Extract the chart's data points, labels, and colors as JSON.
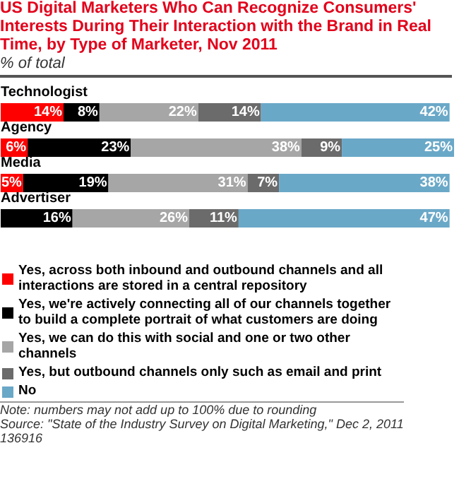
{
  "chart_data": {
    "type": "bar",
    "orientation": "horizontal",
    "stacked": true,
    "title": "US Digital Marketers Who Can Recognize Consumers' Interests During Their Interaction with the Brand in Real Time, by Type of Marketer, Nov 2011",
    "subtitle": "% of total",
    "categories": [
      "Technologist",
      "Agency",
      "Media",
      "Advertiser"
    ],
    "series": [
      {
        "name": "Yes, across both inbound and outbound channels and all interactions are stored in a central repository",
        "color": "#ff0000",
        "values": [
          14,
          6,
          5,
          0
        ],
        "value_labels": [
          "14%",
          "6%",
          "5%",
          null
        ]
      },
      {
        "name": "Yes, we're actively connecting all of our channels together to build a complete portrait of what customers are doing",
        "color": "#000000",
        "values": [
          8,
          23,
          19,
          16
        ],
        "value_labels": [
          "8%",
          "23%",
          "19%",
          "16%"
        ]
      },
      {
        "name": "Yes, we can do this with social and one or two other channels",
        "color": "#a6a6a6",
        "values": [
          22,
          38,
          31,
          26
        ],
        "value_labels": [
          "22%",
          "38%",
          "31%",
          "26%"
        ]
      },
      {
        "name": "Yes, but outbound channels only such as email and print",
        "color": "#6b6b6b",
        "values": [
          14,
          9,
          7,
          11
        ],
        "value_labels": [
          "14%",
          "9%",
          "7%",
          "11%"
        ]
      },
      {
        "name": "No",
        "color": "#6aa8c8",
        "values": [
          42,
          25,
          38,
          47
        ],
        "value_labels": [
          "42%",
          "25%",
          "38%",
          "47%"
        ]
      }
    ],
    "legend": "bottom",
    "annotations": [
      "Note: numbers may not add up to 100% due to rounding",
      "Source: \"State of the Industry Survey on Digital Marketing,\" Dec 2, 2011",
      "136916"
    ]
  }
}
